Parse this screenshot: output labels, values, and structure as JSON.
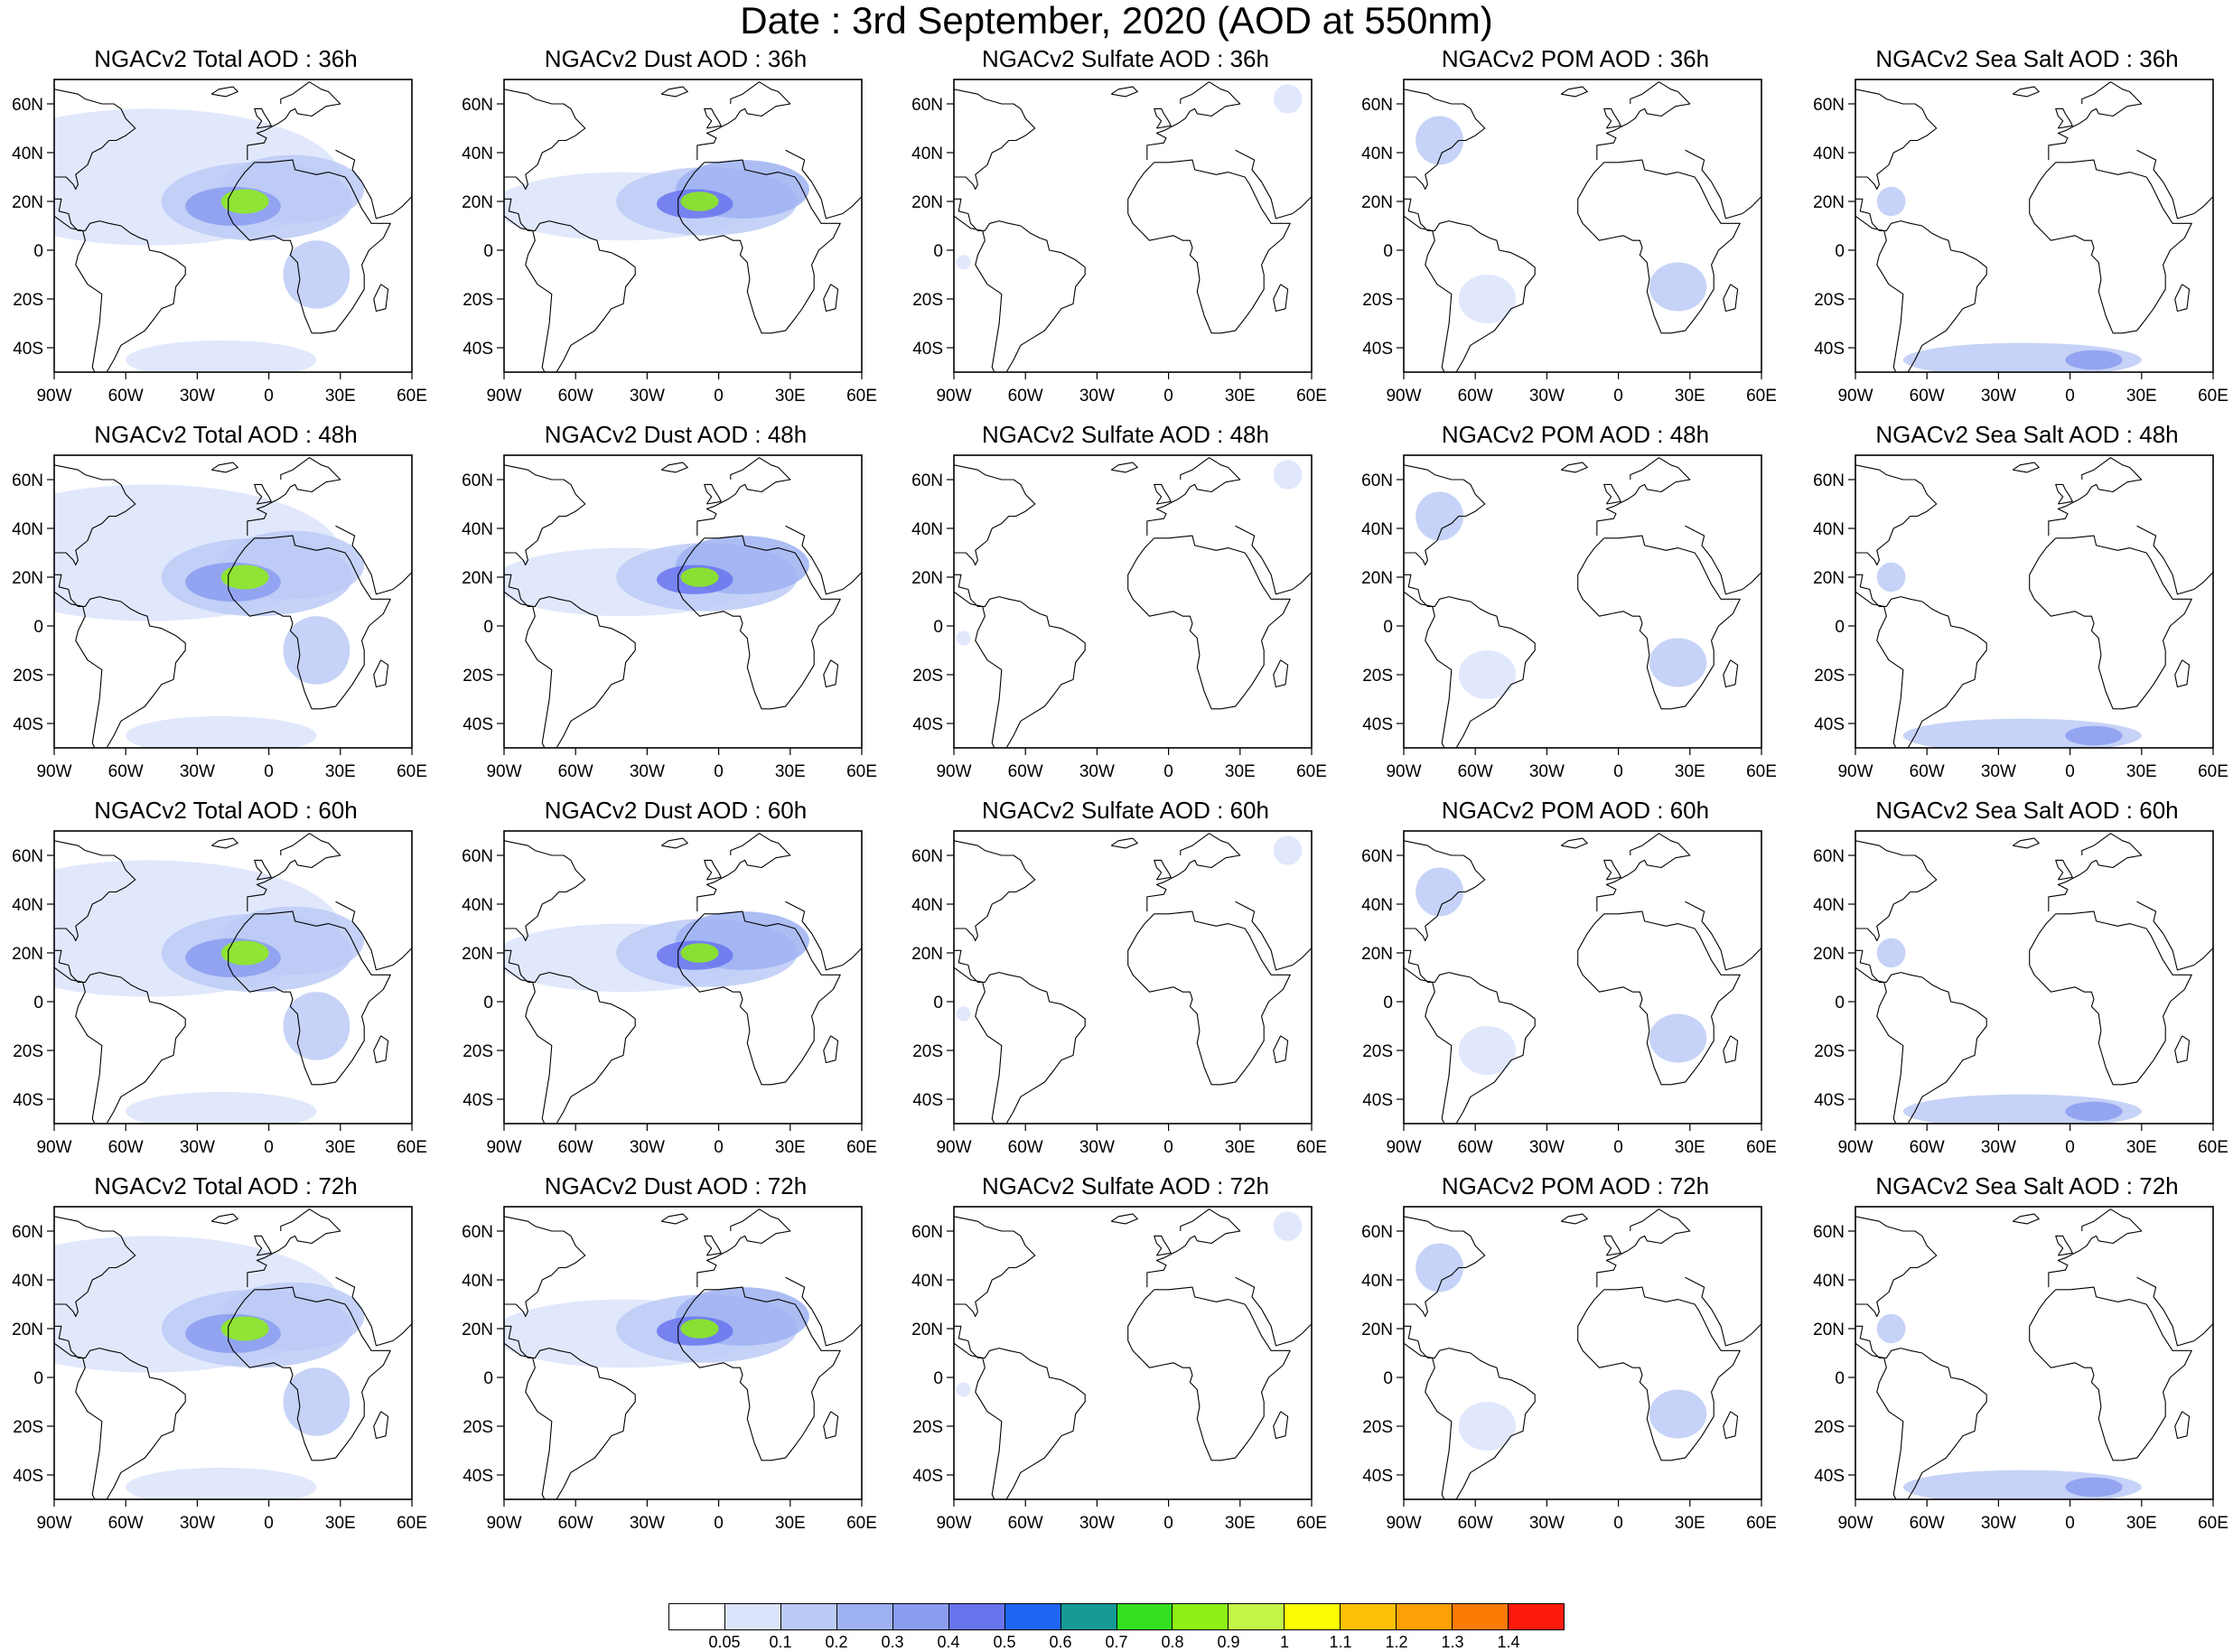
{
  "title": "Date : 3rd September, 2020 (AOD at 550nm)",
  "lon_labels": [
    "90W",
    "60W",
    "30W",
    "0",
    "30E",
    "60E"
  ],
  "lat_labels": [
    "60N",
    "40N",
    "20N",
    "0",
    "20S",
    "40S"
  ],
  "lon_range": [
    -90,
    60
  ],
  "lat_range": [
    -50,
    70
  ],
  "legend": {
    "labels": [
      "0.05",
      "0.1",
      "0.2",
      "0.3",
      "0.4",
      "0.5",
      "0.6",
      "0.7",
      "0.8",
      "0.9",
      "1",
      "1.1",
      "1.2",
      "1.3",
      "1.4"
    ],
    "colors": [
      "#ffffff",
      "#dce4fb",
      "#bccaf6",
      "#9eb2f2",
      "#8a9cf0",
      "#6874ee",
      "#1e66f2",
      "#169a96",
      "#34e020",
      "#8ef014",
      "#c2f648",
      "#fcfc06",
      "#fcc006",
      "#fca006",
      "#fc7a06",
      "#fc1a0c"
    ]
  },
  "forecast_hours": [
    "36h",
    "48h",
    "60h",
    "72h"
  ],
  "species": [
    "Total",
    "Dust",
    "Sulfate",
    "POM",
    "Sea Salt"
  ],
  "panels": [
    [
      {
        "title": "NGACv2 Total AOD : 36h"
      },
      {
        "title": "NGACv2 Dust AOD : 36h"
      },
      {
        "title": "NGACv2 Sulfate AOD : 36h"
      },
      {
        "title": "NGACv2 POM AOD : 36h"
      },
      {
        "title": "NGACv2 Sea Salt AOD : 36h"
      }
    ],
    [
      {
        "title": "NGACv2 Total AOD : 48h"
      },
      {
        "title": "NGACv2 Dust AOD : 48h"
      },
      {
        "title": "NGACv2 Sulfate AOD : 48h"
      },
      {
        "title": "NGACv2 POM AOD : 48h"
      },
      {
        "title": "NGACv2 Sea Salt AOD : 48h"
      }
    ],
    [
      {
        "title": "NGACv2 Total AOD : 60h"
      },
      {
        "title": "NGACv2 Dust AOD : 60h"
      },
      {
        "title": "NGACv2 Sulfate AOD : 60h"
      },
      {
        "title": "NGACv2 POM AOD : 60h"
      },
      {
        "title": "NGACv2 Sea Salt AOD : 60h"
      }
    ],
    [
      {
        "title": "NGACv2 Total AOD : 72h"
      },
      {
        "title": "NGACv2 Dust AOD : 72h"
      },
      {
        "title": "NGACv2 Sulfate AOD : 72h"
      },
      {
        "title": "NGACv2 POM AOD : 72h"
      },
      {
        "title": "NGACv2 Sea Salt  AOD : 72h"
      }
    ]
  ]
}
